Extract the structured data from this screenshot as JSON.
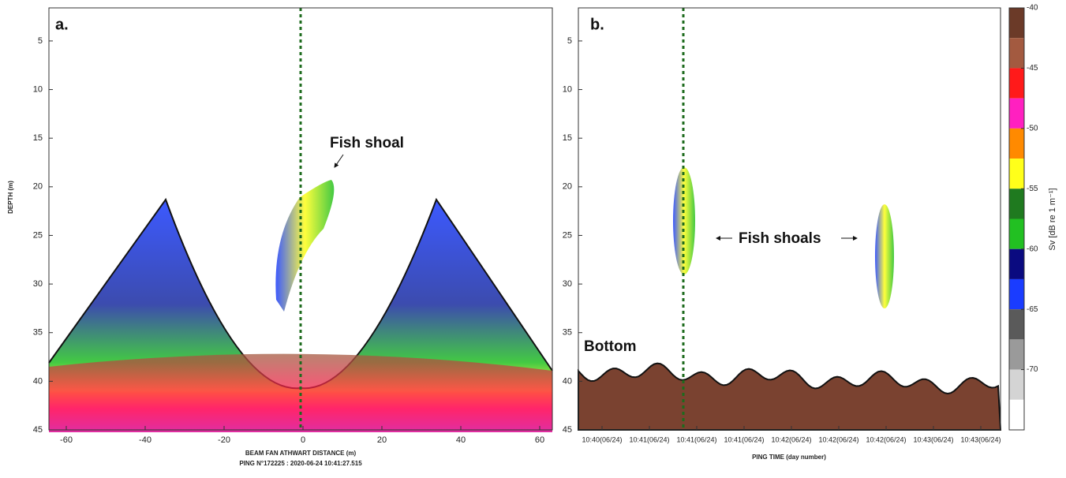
{
  "chart_data": [
    {
      "type": "echogram",
      "panel_label": "a.",
      "xlabel": "BEAM FAN ATHWART DISTANCE (m)",
      "subtitle": "PING N°172225 : 2020-06-24 10:41:27.515",
      "ylabel": "DEPTH (m)",
      "xlim": [
        -64.4,
        63.2
      ],
      "xticks": [
        -60,
        -40,
        -20,
        0,
        20,
        40,
        60
      ],
      "ylim": [
        45,
        1.6
      ],
      "yticks": [
        5,
        10,
        15,
        20,
        25,
        30,
        35,
        40,
        45
      ],
      "annotations": [
        "Fish shoal"
      ]
    },
    {
      "type": "echogram",
      "panel_label": "b.",
      "xlabel": "PING TIME (day number)",
      "categories": [
        "10:40(06/24)",
        "10:41(06/24)",
        "10:41(06/24)",
        "10:41(06/24)",
        "10:42(06/24)",
        "10:42(06/24)",
        "10:42(06/24)",
        "10:43(06/24)",
        "10:43(06/24)"
      ],
      "ylim": [
        45,
        1.6
      ],
      "yticks": [
        5,
        10,
        15,
        20,
        25,
        30,
        35,
        40,
        45
      ],
      "annotations": [
        "Fish shoals",
        "Bottom"
      ]
    },
    {
      "type": "colorbar",
      "label": "Sv [dB re 1 m⁻¹]",
      "lim": [
        -75,
        -40
      ],
      "ticks": [
        -40,
        -45,
        -50,
        -55,
        -60,
        -65,
        -70
      ],
      "colors": [
        "#6b3a28",
        "#a35a40",
        "#ff1a1a",
        "#ff20c0",
        "#ff8a00",
        "#ffff1a",
        "#1f7a1f",
        "#22c022",
        "#0a0a80",
        "#1a3cff",
        "#5a5a5a",
        "#9a9a9a",
        "#d4d4d4",
        "#ffffff"
      ]
    }
  ]
}
